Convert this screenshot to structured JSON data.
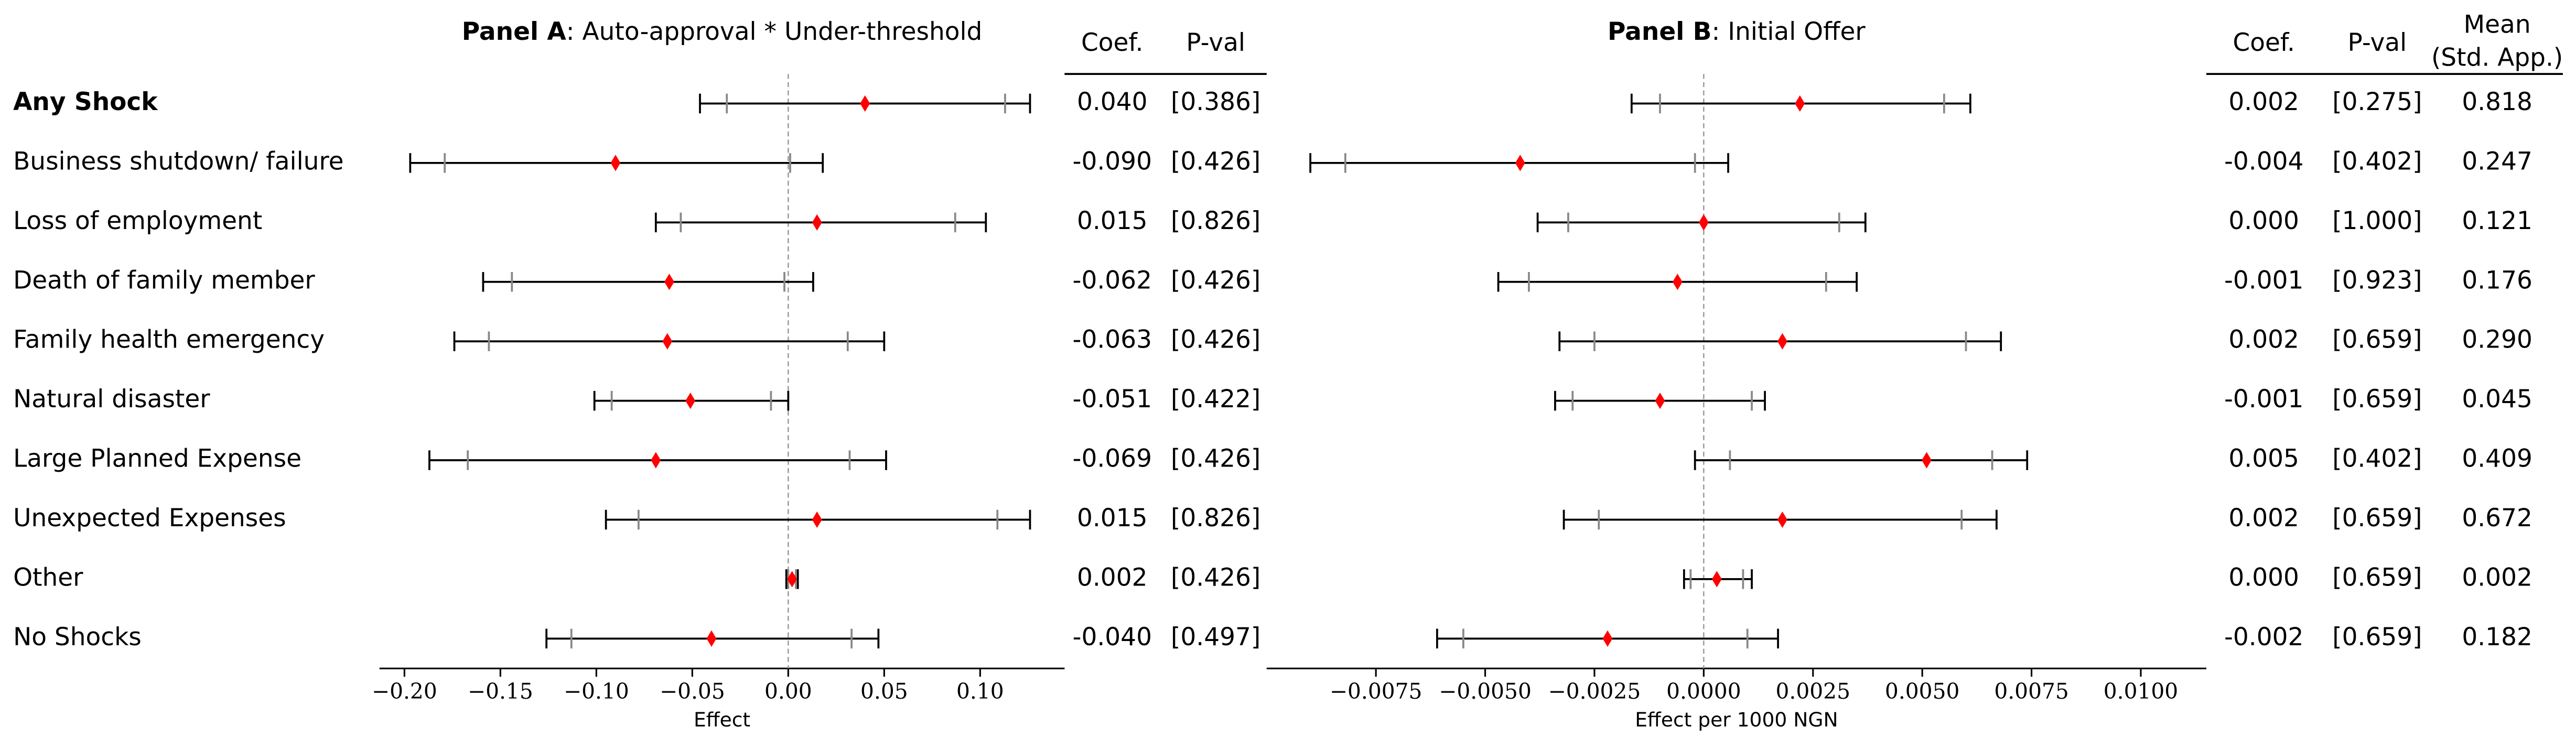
{
  "chart_data": [
    {
      "type": "coefplot",
      "title": [
        "Panel A",
        ": Auto-approval * Under-threshold"
      ],
      "categories": [
        "Any Shock",
        "Business shutdown/ failure",
        "Loss of employment",
        "Death of family member",
        "Family health emergency",
        "Natural disaster",
        "Large Planned Expense",
        "Unexpected Expenses",
        "Other",
        "No Shocks"
      ],
      "values": [
        0.04,
        -0.09,
        0.015,
        -0.062,
        -0.063,
        -0.051,
        -0.069,
        0.015,
        0.002,
        -0.04
      ],
      "value_labels": [
        "0.040",
        "-0.090",
        "0.015",
        "-0.062",
        "-0.063",
        "-0.051",
        "-0.069",
        "0.015",
        "0.002",
        "-0.040"
      ],
      "ci95": [
        [
          -0.046,
          0.126
        ],
        [
          -0.197,
          0.018
        ],
        [
          -0.069,
          0.103
        ],
        [
          -0.159,
          0.013
        ],
        [
          -0.174,
          0.05
        ],
        [
          -0.101,
          0.0
        ],
        [
          -0.187,
          0.051
        ],
        [
          -0.095,
          0.126
        ],
        [
          -0.001,
          0.005
        ],
        [
          -0.126,
          0.047
        ]
      ],
      "ci90": [
        [
          -0.032,
          0.113
        ],
        [
          -0.179,
          0.001
        ],
        [
          -0.056,
          0.087
        ],
        [
          -0.144,
          -0.002
        ],
        [
          -0.156,
          0.031
        ],
        [
          -0.092,
          -0.009
        ],
        [
          -0.167,
          0.032
        ],
        [
          -0.078,
          0.109
        ],
        [
          0.0,
          0.004
        ],
        [
          -0.113,
          0.033
        ]
      ],
      "p_values": [
        "[0.386]",
        "[0.426]",
        "[0.826]",
        "[0.426]",
        "[0.426]",
        "[0.422]",
        "[0.426]",
        "[0.826]",
        "[0.426]",
        "[0.497]"
      ],
      "columns": [
        [
          "Coef."
        ],
        [
          "P-val"
        ]
      ],
      "xlabel": "Effect",
      "xlim": [
        -0.213,
        0.144
      ],
      "xticks": [
        {
          "value": -0.2,
          "label": "−0.20"
        },
        {
          "value": -0.15,
          "label": "−0.15"
        },
        {
          "value": -0.1,
          "label": "−0.10"
        },
        {
          "value": -0.05,
          "label": "−0.05"
        },
        {
          "value": 0,
          "label": "0.00"
        },
        {
          "value": 0.05,
          "label": "0.05"
        },
        {
          "value": 0.1,
          "label": "0.10"
        }
      ],
      "reference_line": 0,
      "color": "#ff0000",
      "ci90_color": "#888888",
      "ci95_color": "#000000"
    },
    {
      "type": "coefplot",
      "title": [
        "Panel B",
        ": Initial Offer"
      ],
      "values": [
        0.0022,
        -0.0042,
        0.0,
        -0.0006,
        0.0018,
        -0.001,
        0.0051,
        0.0018,
        0.0003,
        -0.0022
      ],
      "value_labels": [
        "0.002",
        "-0.004",
        "0.000",
        "-0.001",
        "0.002",
        "-0.001",
        "0.005",
        "0.002",
        "0.000",
        "-0.002"
      ],
      "ci95": [
        [
          -0.00165,
          0.0061
        ],
        [
          -0.009,
          0.00056
        ],
        [
          -0.0038,
          0.0037
        ],
        [
          -0.0047,
          0.0035
        ],
        [
          -0.0033,
          0.0068
        ],
        [
          -0.0034,
          0.0014
        ],
        [
          -0.0002,
          0.0074
        ],
        [
          -0.0032,
          0.0067
        ],
        [
          -0.00045,
          0.0011
        ],
        [
          -0.0061,
          0.0017
        ]
      ],
      "ci90": [
        [
          -0.001,
          0.0055
        ],
        [
          -0.0082,
          -0.0002
        ],
        [
          -0.0031,
          0.0031
        ],
        [
          -0.004,
          0.0028
        ],
        [
          -0.0025,
          0.006
        ],
        [
          -0.003,
          0.0011
        ],
        [
          0.0006,
          0.0066
        ],
        [
          -0.0024,
          0.0059
        ],
        [
          -0.0003,
          0.0009
        ],
        [
          -0.0055,
          0.001
        ]
      ],
      "p_values": [
        "[0.275]",
        "[0.402]",
        "[1.000]",
        "[0.923]",
        "[0.659]",
        "[0.659]",
        "[0.402]",
        "[0.659]",
        "[0.659]",
        "[0.659]"
      ],
      "means": [
        "0.818",
        "0.247",
        "0.121",
        "0.176",
        "0.290",
        "0.045",
        "0.409",
        "0.672",
        "0.002",
        "0.182"
      ],
      "columns": [
        [
          "Coef."
        ],
        [
          "P-val"
        ],
        [
          "Mean",
          "(Std. App.)"
        ]
      ],
      "xlabel": "Effect per 1000 NGN",
      "xlim": [
        -0.01,
        0.0115
      ],
      "xticks": [
        {
          "value": -0.0075,
          "label": "−0.0075"
        },
        {
          "value": -0.005,
          "label": "−0.0050"
        },
        {
          "value": -0.0025,
          "label": "−0.0025"
        },
        {
          "value": 0,
          "label": "0.0000"
        },
        {
          "value": 0.0025,
          "label": "0.0025"
        },
        {
          "value": 0.005,
          "label": "0.0050"
        },
        {
          "value": 0.0075,
          "label": "0.0075"
        },
        {
          "value": 0.01,
          "label": "0.0100"
        }
      ],
      "reference_line": 0,
      "color": "#ff0000",
      "ci90_color": "#888888",
      "ci95_color": "#000000"
    }
  ]
}
